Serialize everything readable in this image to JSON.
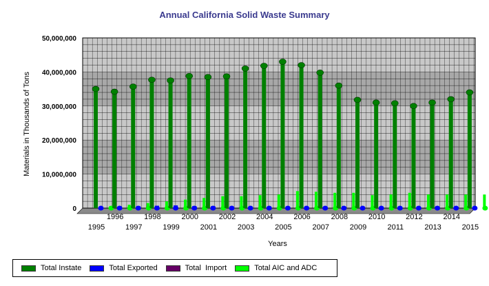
{
  "chart_data": {
    "type": "bar",
    "title": "Annual California Solid Waste Summary",
    "xlabel": "Years",
    "ylabel": "Materials in Thousands of Tons",
    "ylim": [
      0,
      50000000
    ],
    "yticks": [
      "0",
      "10,000,000",
      "20,000,000",
      "30,000,000",
      "40,000,000",
      "50,000,000"
    ],
    "categories": [
      "1995",
      "1996",
      "1997",
      "1998",
      "1999",
      "2000",
      "2001",
      "2002",
      "2003",
      "2004",
      "2005",
      "2006",
      "2007",
      "2008",
      "2009",
      "2010",
      "2011",
      "2012",
      "2013",
      "2014",
      "2015"
    ],
    "series": [
      {
        "name": "Total Instate",
        "color": "#008000",
        "values": [
          35000000,
          34200000,
          35700000,
          37700000,
          37500000,
          38800000,
          38500000,
          38700000,
          41000000,
          41800000,
          43000000,
          42000000,
          39800000,
          36000000,
          31800000,
          31000000,
          30800000,
          30000000,
          31000000,
          32000000,
          34000000
        ]
      },
      {
        "name": "Total Exported",
        "color": "#0000ff",
        "values": [
          300000,
          500000,
          600000,
          700000,
          800000,
          600000,
          600000,
          500000,
          500000,
          500000,
          500000,
          500000,
          500000,
          400000,
          300000,
          300000,
          300000,
          300000,
          300000,
          300000,
          300000
        ]
      },
      {
        "name": "Total  Import",
        "color": "#660066",
        "values": [
          0,
          0,
          0,
          0,
          0,
          0,
          0,
          0,
          0,
          0,
          0,
          0,
          0,
          0,
          0,
          0,
          0,
          0,
          0,
          0,
          0
        ]
      },
      {
        "name": "Total AIC and ADC",
        "color": "#00ff00",
        "values": [
          600000,
          1000000,
          1500000,
          2000000,
          2500000,
          3000000,
          3500000,
          3500000,
          3800000,
          4000000,
          5000000,
          4800000,
          4500000,
          4500000,
          3800000,
          4000000,
          4500000,
          4000000,
          4000000,
          4000000,
          4000000
        ]
      }
    ],
    "legend_position": "bottom-left",
    "grid": true
  }
}
